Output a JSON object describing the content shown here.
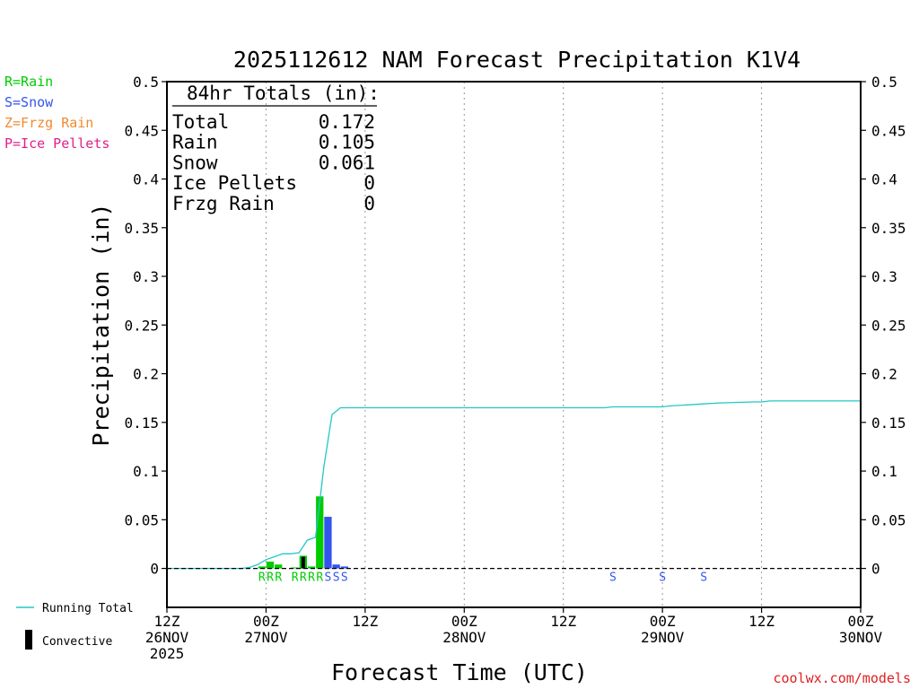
{
  "chart_data": {
    "type": "bar",
    "title": "2025112612 NAM Forecast Precipitation K1V4",
    "xlabel": "Forecast Time (UTC)",
    "ylabel": "Precipitation (in)",
    "ylim": [
      -0.04,
      0.5
    ],
    "xlim": [
      0,
      84
    ],
    "y_ticks": [
      "0.5",
      "0.45",
      "0.4",
      "0.35",
      "0.3",
      "0.25",
      "0.2",
      "0.15",
      "0.1",
      "0.05",
      "0"
    ],
    "y_tick_values": [
      0.5,
      0.45,
      0.4,
      0.35,
      0.3,
      0.25,
      0.2,
      0.15,
      0.1,
      0.05,
      0
    ],
    "x_ticks": [
      {
        "hour": 0,
        "l1": "12Z",
        "l2": "26NOV",
        "l3": "2025"
      },
      {
        "hour": 12,
        "l1": "00Z",
        "l2": "27NOV",
        "l3": ""
      },
      {
        "hour": 24,
        "l1": "12Z",
        "l2": "",
        "l3": ""
      },
      {
        "hour": 36,
        "l1": "00Z",
        "l2": "28NOV",
        "l3": ""
      },
      {
        "hour": 48,
        "l1": "12Z",
        "l2": "",
        "l3": ""
      },
      {
        "hour": 60,
        "l1": "00Z",
        "l2": "29NOV",
        "l3": ""
      },
      {
        "hour": 72,
        "l1": "12Z",
        "l2": "",
        "l3": ""
      },
      {
        "hour": 84,
        "l1": "00Z",
        "l2": "30NOV",
        "l3": ""
      }
    ],
    "legend_types": [
      {
        "label": "R=Rain",
        "color": "#00cc00"
      },
      {
        "label": "S=Snow",
        "color": "#3355ee"
      },
      {
        "label": "Z=Frzg Rain",
        "color": "#f08a30"
      },
      {
        "label": "P=Ice Pellets",
        "color": "#e0208a"
      }
    ],
    "legend_series": {
      "running_total": "Running Total",
      "convective": "Convective"
    },
    "totals": {
      "header": "84hr Totals (in):",
      "rows": [
        {
          "label": "Total",
          "value": "0.172"
        },
        {
          "label": "Rain",
          "value": "0.105"
        },
        {
          "label": "Snow",
          "value": "0.061"
        },
        {
          "label": "Ice Pellets",
          "value": "0"
        },
        {
          "label": "Frzg Rain",
          "value": "0"
        }
      ]
    },
    "bars": [
      {
        "hour": 11.5,
        "value": 0.002,
        "color": "#00cc00"
      },
      {
        "hour": 12.5,
        "value": 0.007,
        "color": "#00cc00"
      },
      {
        "hour": 13.5,
        "value": 0.004,
        "color": "#00cc00"
      },
      {
        "hour": 15.5,
        "value": 0.001,
        "color": "#00cc00"
      },
      {
        "hour": 16.5,
        "value": 0.013,
        "color": "#00cc00"
      },
      {
        "hour": 17.5,
        "value": 0.002,
        "color": "#00cc00"
      },
      {
        "hour": 18.5,
        "value": 0.074,
        "color": "#00cc00"
      },
      {
        "hour": 19.5,
        "value": 0.053,
        "color": "#3355ee"
      },
      {
        "hour": 20.5,
        "value": 0.004,
        "color": "#3355ee"
      },
      {
        "hour": 21.5,
        "value": 0.002,
        "color": "#3355ee"
      }
    ],
    "convective": [
      {
        "hour": 16.5,
        "value": 0.012
      }
    ],
    "running_total": {
      "color": "#20c8c8",
      "x": [
        0,
        9,
        10,
        11,
        12,
        13,
        14,
        15,
        16,
        17,
        18,
        19,
        20,
        21,
        24,
        53,
        54,
        60,
        61,
        63,
        65,
        67,
        71,
        72,
        73,
        76,
        84
      ],
      "y": [
        0,
        0,
        0.001,
        0.004,
        0.009,
        0.012,
        0.015,
        0.015,
        0.016,
        0.029,
        0.032,
        0.104,
        0.158,
        0.165,
        0.165,
        0.165,
        0.166,
        0.166,
        0.167,
        0.168,
        0.169,
        0.17,
        0.171,
        0.171,
        0.172,
        0.172,
        0.172
      ]
    },
    "ptype_markers": [
      {
        "hour": 11.5,
        "label": "R",
        "color": "#00cc00"
      },
      {
        "hour": 12.5,
        "label": "R",
        "color": "#00cc00"
      },
      {
        "hour": 13.5,
        "label": "R",
        "color": "#00cc00"
      },
      {
        "hour": 15.5,
        "label": "R",
        "color": "#00cc00"
      },
      {
        "hour": 16.5,
        "label": "R",
        "color": "#00cc00"
      },
      {
        "hour": 17.5,
        "label": "R",
        "color": "#00cc00"
      },
      {
        "hour": 18.5,
        "label": "R",
        "color": "#00cc00"
      },
      {
        "hour": 19.5,
        "label": "S",
        "color": "#3355ee"
      },
      {
        "hour": 20.5,
        "label": "S",
        "color": "#3355ee"
      },
      {
        "hour": 21.5,
        "label": "S",
        "color": "#3355ee"
      },
      {
        "hour": 54,
        "label": "S",
        "color": "#3355ee"
      },
      {
        "hour": 60,
        "label": "S",
        "color": "#3355ee"
      },
      {
        "hour": 65,
        "label": "S",
        "color": "#3355ee"
      }
    ]
  },
  "credit": "coolwx.com/models"
}
